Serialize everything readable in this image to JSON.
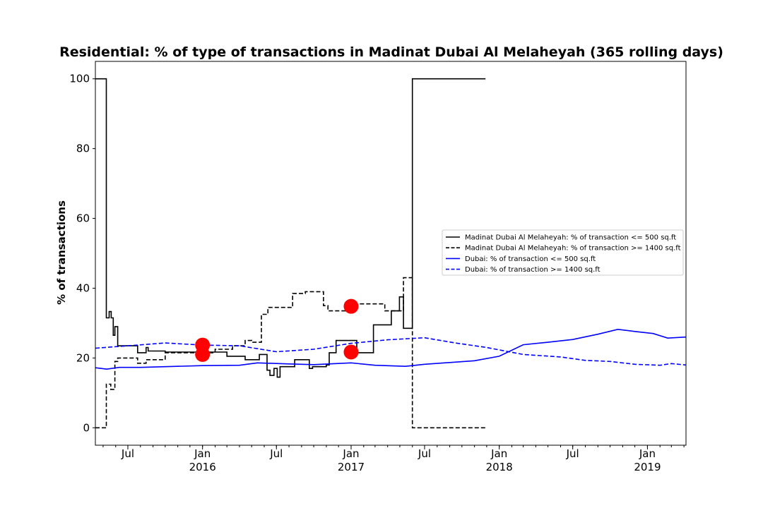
{
  "chart_data": {
    "type": "line",
    "title": "Residential: % of type of transactions in Madinat Dubai Al Melaheyah (365 rolling days)",
    "xlabel": "",
    "ylabel": "% of transactions",
    "xlim": [
      "2015-04-12",
      "2019-04-06"
    ],
    "ylim": [
      -5,
      105
    ],
    "yticks": [
      0,
      20,
      40,
      60,
      80,
      100
    ],
    "xticks": [
      {
        "date": "2015-07-01",
        "label": "Jul",
        "sublabel": ""
      },
      {
        "date": "2016-01-01",
        "label": "Jan",
        "sublabel": "2016"
      },
      {
        "date": "2016-07-01",
        "label": "Jul",
        "sublabel": ""
      },
      {
        "date": "2017-01-01",
        "label": "Jan",
        "sublabel": "2017"
      },
      {
        "date": "2017-07-01",
        "label": "Jul",
        "sublabel": ""
      },
      {
        "date": "2018-01-01",
        "label": "Jan",
        "sublabel": "2018"
      },
      {
        "date": "2018-07-01",
        "label": "Jul",
        "sublabel": ""
      },
      {
        "date": "2019-01-01",
        "label": "Jan",
        "sublabel": "2019"
      }
    ],
    "legend": {
      "location": "center-right",
      "entries": [
        {
          "label": "Madinat Dubai Al Melaheyah: % of transaction <= 500 sq.ft",
          "color": "#000000",
          "dash": "solid"
        },
        {
          "label": "Madinat Dubai Al Melaheyah: % of transaction >= 1400 sq.ft",
          "color": "#000000",
          "dash": "dashed"
        },
        {
          "label": "Dubai: % of transaction <= 500 sq.ft",
          "color": "#0000ff",
          "dash": "solid"
        },
        {
          "label": "Dubai: % of transaction >= 1400 sq.ft",
          "color": "#0000ff",
          "dash": "dashed"
        }
      ]
    },
    "series": [
      {
        "name": "Madinat Dubai Al Melaheyah: % of transaction <= 500 sq.ft",
        "color": "#000000",
        "dash": "solid",
        "step": true,
        "points": [
          [
            "2015-04-12",
            100
          ],
          [
            "2015-05-09",
            31.5
          ],
          [
            "2015-05-16",
            33.3
          ],
          [
            "2015-05-21",
            31.5
          ],
          [
            "2015-05-26",
            26.5
          ],
          [
            "2015-05-30",
            29
          ],
          [
            "2015-06-06",
            23.5
          ],
          [
            "2015-07-25",
            21.5
          ],
          [
            "2015-08-15",
            23
          ],
          [
            "2015-08-20",
            22
          ],
          [
            "2015-10-01",
            21.7
          ],
          [
            "2016-01-01",
            21.7
          ],
          [
            "2016-02-01",
            21.7
          ],
          [
            "2016-03-01",
            20.5
          ],
          [
            "2016-04-15",
            19.5
          ],
          [
            "2016-05-20",
            21
          ],
          [
            "2016-06-08",
            16.5
          ],
          [
            "2016-06-15",
            15
          ],
          [
            "2016-06-25",
            17
          ],
          [
            "2016-07-03",
            14.5
          ],
          [
            "2016-07-10",
            17.5
          ],
          [
            "2016-08-15",
            19.5
          ],
          [
            "2016-09-20",
            17
          ],
          [
            "2016-09-28",
            17.5
          ],
          [
            "2016-11-01",
            18
          ],
          [
            "2016-11-08",
            21.5
          ],
          [
            "2016-11-25",
            25
          ],
          [
            "2017-01-15",
            21.5
          ],
          [
            "2017-02-25",
            29.5
          ],
          [
            "2017-04-10",
            33.5
          ],
          [
            "2017-04-30",
            37.5
          ],
          [
            "2017-05-10",
            28.5
          ],
          [
            "2017-06-01",
            100
          ],
          [
            "2017-11-28",
            100
          ]
        ]
      },
      {
        "name": "Madinat Dubai Al Melaheyah: % of transaction >= 1400 sq.ft",
        "color": "#000000",
        "dash": "dashed",
        "step": true,
        "points": [
          [
            "2015-04-12",
            0
          ],
          [
            "2015-05-09",
            12.5
          ],
          [
            "2015-05-20",
            11
          ],
          [
            "2015-05-30",
            19
          ],
          [
            "2015-06-06",
            20
          ],
          [
            "2015-07-25",
            18.5
          ],
          [
            "2015-08-15",
            19.5
          ],
          [
            "2015-10-01",
            21.5
          ],
          [
            "2016-02-01",
            22.5
          ],
          [
            "2016-03-15",
            23.5
          ],
          [
            "2016-04-15",
            25
          ],
          [
            "2016-05-01",
            24.5
          ],
          [
            "2016-05-25",
            32.5
          ],
          [
            "2016-06-10",
            34.5
          ],
          [
            "2016-07-01",
            34.5
          ],
          [
            "2016-08-10",
            38.5
          ],
          [
            "2016-09-10",
            39
          ],
          [
            "2016-10-25",
            35
          ],
          [
            "2016-11-05",
            33.5
          ],
          [
            "2016-12-20",
            33.5
          ],
          [
            "2017-01-10",
            35.5
          ],
          [
            "2017-03-25",
            33.5
          ],
          [
            "2017-05-10",
            43
          ],
          [
            "2017-06-01",
            0
          ],
          [
            "2017-11-28",
            0
          ]
        ]
      },
      {
        "name": "Dubai: % of transaction <= 500 sq.ft",
        "color": "#0000ff",
        "dash": "solid",
        "step": false,
        "points": [
          [
            "2015-04-12",
            17.2
          ],
          [
            "2015-05-10",
            16.8
          ],
          [
            "2015-06-10",
            17.3
          ],
          [
            "2015-08-01",
            17.3
          ],
          [
            "2015-10-01",
            17.5
          ],
          [
            "2016-01-01",
            17.8
          ],
          [
            "2016-04-01",
            17.9
          ],
          [
            "2016-05-15",
            18.6
          ],
          [
            "2016-08-01",
            18.3
          ],
          [
            "2016-10-01",
            18.1
          ],
          [
            "2017-01-01",
            18.6
          ],
          [
            "2017-03-01",
            17.9
          ],
          [
            "2017-05-15",
            17.6
          ],
          [
            "2017-07-01",
            18.2
          ],
          [
            "2017-09-01",
            18.7
          ],
          [
            "2017-11-01",
            19.2
          ],
          [
            "2018-01-01",
            20.5
          ],
          [
            "2018-03-01",
            23.8
          ],
          [
            "2018-05-01",
            24.5
          ],
          [
            "2018-07-01",
            25.3
          ],
          [
            "2018-09-01",
            26.8
          ],
          [
            "2018-10-20",
            28.2
          ],
          [
            "2018-12-01",
            27.6
          ],
          [
            "2019-01-15",
            27
          ],
          [
            "2019-02-20",
            25.7
          ],
          [
            "2019-04-06",
            26
          ]
        ]
      },
      {
        "name": "Dubai: % of transaction >= 1400 sq.ft",
        "color": "#0000ff",
        "dash": "dashed",
        "step": false,
        "points": [
          [
            "2015-04-12",
            22.8
          ],
          [
            "2015-07-01",
            23.5
          ],
          [
            "2015-10-01",
            24.3
          ],
          [
            "2016-01-01",
            23.7
          ],
          [
            "2016-04-01",
            23.5
          ],
          [
            "2016-07-01",
            21.8
          ],
          [
            "2016-10-01",
            22.5
          ],
          [
            "2017-01-01",
            24.2
          ],
          [
            "2017-04-01",
            25.2
          ],
          [
            "2017-07-01",
            25.8
          ],
          [
            "2017-09-15",
            24.3
          ],
          [
            "2017-12-01",
            23
          ],
          [
            "2018-03-01",
            21
          ],
          [
            "2018-06-01",
            20.3
          ],
          [
            "2018-08-01",
            19.3
          ],
          [
            "2018-10-01",
            19
          ],
          [
            "2018-12-01",
            18.2
          ],
          [
            "2019-02-01",
            17.9
          ],
          [
            "2019-03-01",
            18.4
          ],
          [
            "2019-04-06",
            18
          ]
        ]
      }
    ],
    "markers": {
      "color": "#ff0000",
      "points": [
        [
          "2016-01-01",
          23.7
        ],
        [
          "2016-01-01",
          21
        ],
        [
          "2017-01-01",
          34.8
        ],
        [
          "2017-01-01",
          21.7
        ]
      ]
    }
  }
}
